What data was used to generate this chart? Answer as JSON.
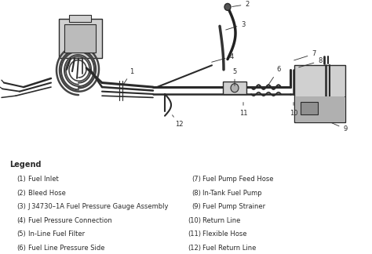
{
  "background_color": "#f5f5f0",
  "legend_title": "Legend",
  "legend_items_left": [
    [
      "(1)",
      "Fuel Inlet"
    ],
    [
      "(2)",
      "Bleed Hose"
    ],
    [
      "(3)",
      "J 34730–1A Fuel Pressure Gauge Assembly"
    ],
    [
      "(4)",
      "Fuel Pressure Connection"
    ],
    [
      "(5)",
      "In-Line Fuel Filter"
    ],
    [
      "(6)",
      "Fuel Line Pressure Side"
    ]
  ],
  "legend_items_right": [
    [
      "(7)",
      "Fuel Pump Feed Hose"
    ],
    [
      "(8)",
      "In-Tank Fuel Pump"
    ],
    [
      "(9)",
      "Fuel Pump Strainer"
    ],
    [
      "(10)",
      "Return Line"
    ],
    [
      "(11)",
      "Flexible Hose"
    ],
    [
      "(12)",
      "Fuel Return Line"
    ]
  ],
  "fig_width": 4.74,
  "fig_height": 3.24,
  "dpi": 100,
  "line_color": "#2a2a2a",
  "gray_fill": "#b0b0b0",
  "light_gray": "#d0d0d0",
  "label_fontsize": 6.0,
  "legend_title_fontsize": 7.0,
  "legend_fontsize": 6.0
}
